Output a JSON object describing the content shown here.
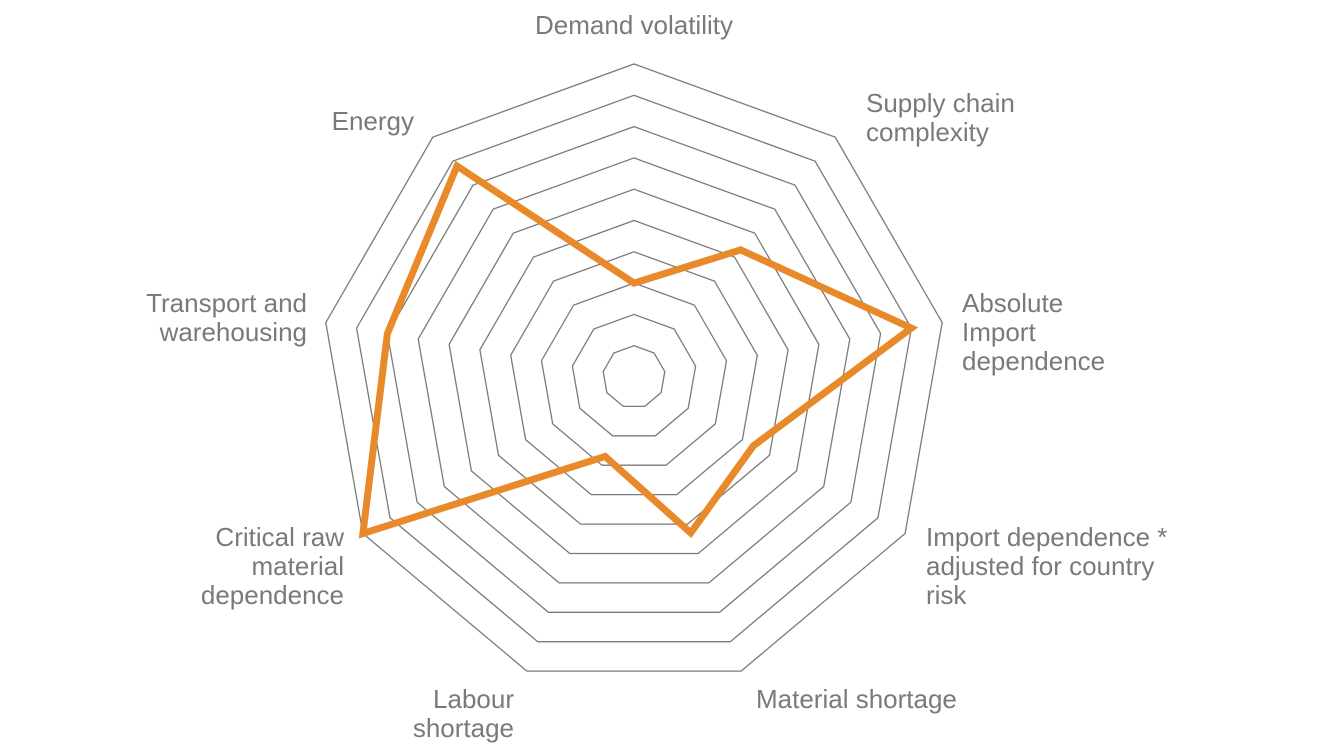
{
  "chart_data": {
    "type": "radar",
    "axes": [
      {
        "label": [
          "Demand volatility"
        ]
      },
      {
        "label": [
          "Supply chain",
          "complexity"
        ]
      },
      {
        "label": [
          "Absolute",
          "Import",
          "dependence"
        ]
      },
      {
        "label": [
          "Import dependence *",
          "adjusted for country",
          "risk"
        ]
      },
      {
        "label": [
          "Material shortage"
        ]
      },
      {
        "label": [
          "Labour",
          "shortage"
        ]
      },
      {
        "label": [
          "Critical raw",
          "material",
          "dependence"
        ]
      },
      {
        "label": [
          "Transport and",
          "warehousing"
        ]
      },
      {
        "label": [
          "Energy"
        ]
      }
    ],
    "rings": 10,
    "range": [
      0,
      10
    ],
    "grid": true,
    "series": [
      {
        "values": [
          3,
          5.3,
          9,
          4.4,
          5.3,
          2.7,
          10,
          8,
          8.8
        ],
        "color": "#e8892a"
      }
    ]
  }
}
